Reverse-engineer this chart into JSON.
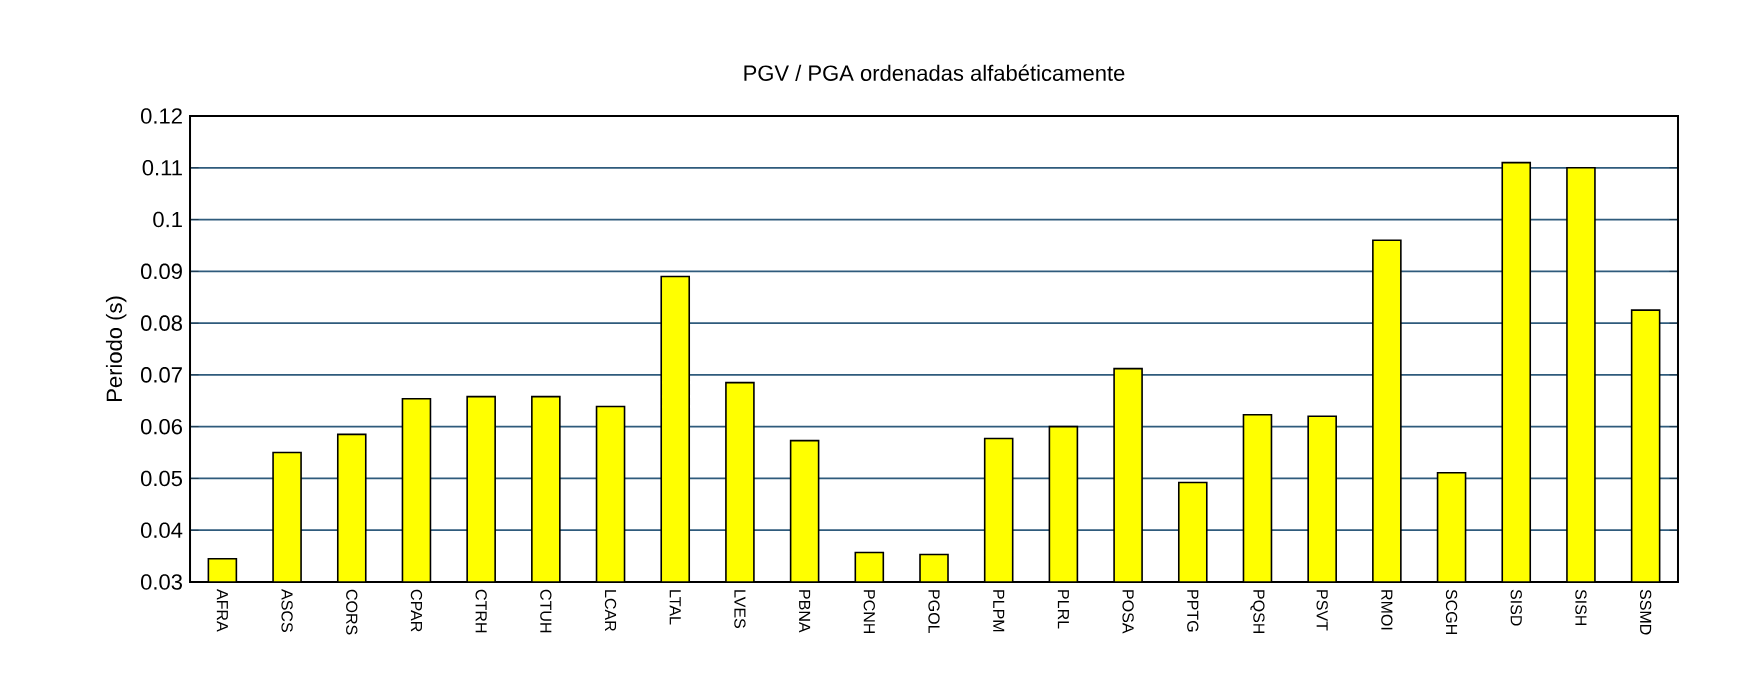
{
  "chart_data": {
    "type": "bar",
    "title": "PGV / PGA ordenadas alfabéticamente",
    "ylabel": "Periodo (s)",
    "categories": [
      "AFRA",
      "ASCS",
      "CORS",
      "CPAR",
      "CTRH",
      "CTUH",
      "LCAR",
      "LTAL",
      "LVES",
      "PBNA",
      "PCNH",
      "PGOL",
      "PLPM",
      "PLRL",
      "POSA",
      "PPTG",
      "PQSH",
      "PSVT",
      "RMOI",
      "SCGH",
      "SISD",
      "SISH",
      "SSMD"
    ],
    "values": [
      0.0345,
      0.055,
      0.0585,
      0.0654,
      0.0658,
      0.0658,
      0.0639,
      0.089,
      0.0685,
      0.0573,
      0.0357,
      0.0353,
      0.0577,
      0.06,
      0.0712,
      0.0492,
      0.0623,
      0.062,
      0.096,
      0.0511,
      0.111,
      0.11,
      0.0825
    ],
    "color": "#ffff00",
    "ylim": [
      0.03,
      0.12
    ],
    "yticks": [
      0.03,
      0.04,
      0.05,
      0.06,
      0.07,
      0.08,
      0.09,
      0.1,
      0.11,
      0.12
    ],
    "grid": "y"
  }
}
